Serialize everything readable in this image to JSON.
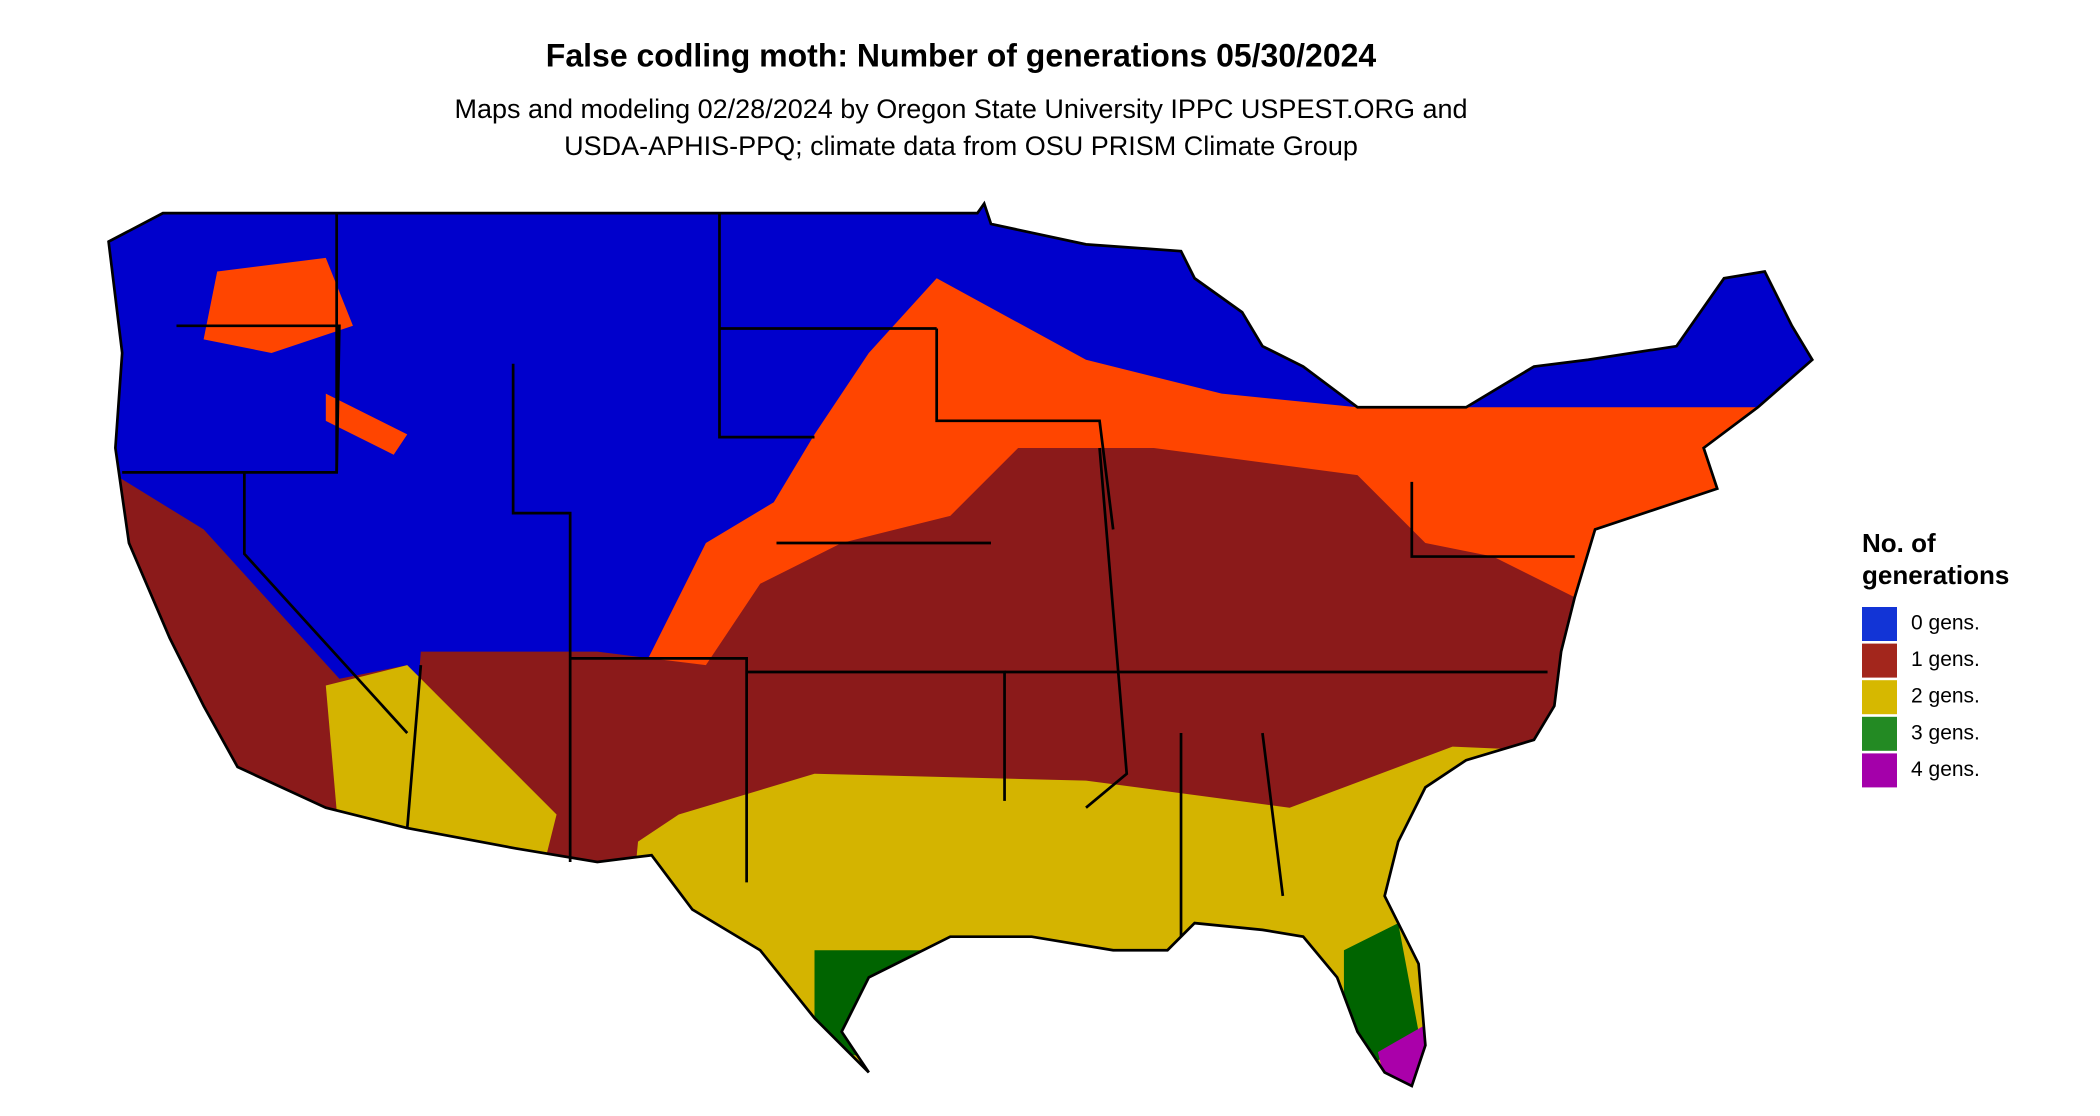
{
  "title": "False codling moth: Number of generations 05/30/2024",
  "subtitle_lines": [
    "Maps and modeling 02/28/2024 by Oregon State University IPPC USPEST.ORG and",
    "USDA-APHIS-PPQ; climate data from OSU PRISM Climate Group"
  ],
  "legend": {
    "title_lines": [
      "No. of",
      "generations"
    ],
    "items": [
      {
        "label": "0 gens.",
        "color": "#1234d6"
      },
      {
        "label": "1 gens.",
        "color": "#a3261c"
      },
      {
        "label": "2 gens.",
        "color": "#d6b800"
      },
      {
        "label": "3 gens.",
        "color": "#238a23"
      },
      {
        "label": "4 gens.",
        "color": "#a400aa"
      }
    ]
  }
}
